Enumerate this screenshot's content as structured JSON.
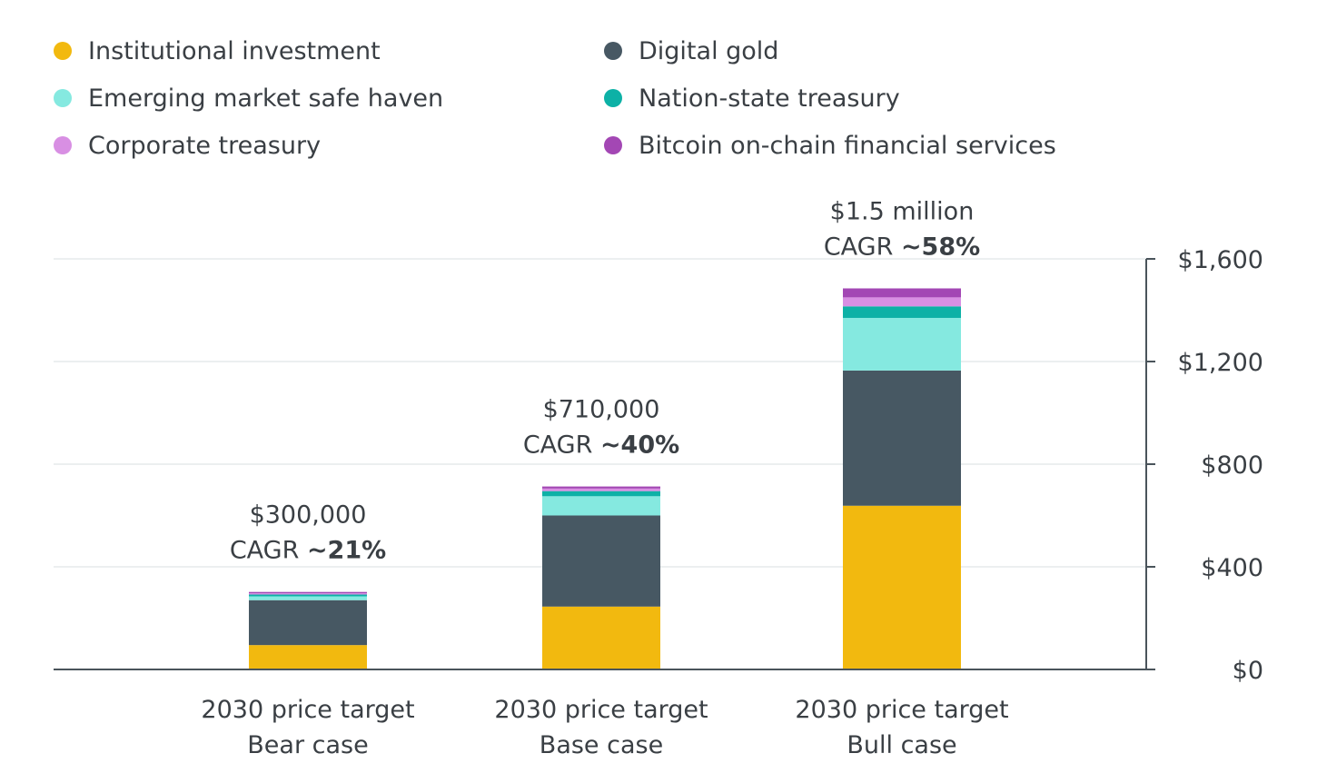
{
  "chart_data": {
    "type": "bar",
    "stacked": true,
    "categories": [
      [
        "2030 price target",
        "Bear case"
      ],
      [
        "2030 price target",
        "Base case"
      ],
      [
        "2030 price target",
        "Bull case"
      ]
    ],
    "totals": [
      {
        "value_label": "$300,000",
        "cagr_prefix": "CAGR ",
        "cagr_value": "~21%"
      },
      {
        "value_label": "$710,000",
        "cagr_prefix": "CAGR ",
        "cagr_value": "~40%"
      },
      {
        "value_label": "$1.5 million",
        "cagr_prefix": "CAGR ",
        "cagr_value": "~58%"
      }
    ],
    "series": [
      {
        "name": "Institutional investment",
        "color": "#f2b90f",
        "values": [
          95,
          245,
          638
        ]
      },
      {
        "name": "Digital gold",
        "color": "#475863",
        "values": [
          175,
          355,
          527
        ]
      },
      {
        "name": "Emerging market safe haven",
        "color": "#85e9e0",
        "values": [
          15,
          75,
          205
        ]
      },
      {
        "name": "Nation-state treasury",
        "color": "#0db1a6",
        "values": [
          7,
          20,
          45
        ]
      },
      {
        "name": "Corporate treasury",
        "color": "#d88fe3",
        "values": [
          5,
          10,
          35
        ]
      },
      {
        "name": "Bitcoin on-chain financial services",
        "color": "#a347b4",
        "values": [
          5,
          8,
          35
        ]
      }
    ],
    "yaxis": {
      "ticks": [
        0,
        400,
        800,
        1200,
        1600
      ],
      "tick_labels": [
        "$0",
        "$400",
        "$800",
        "$1,200",
        "$1,600"
      ],
      "ylim": [
        0,
        1600
      ],
      "position": "right"
    },
    "grid": true,
    "legend_position": "top"
  }
}
